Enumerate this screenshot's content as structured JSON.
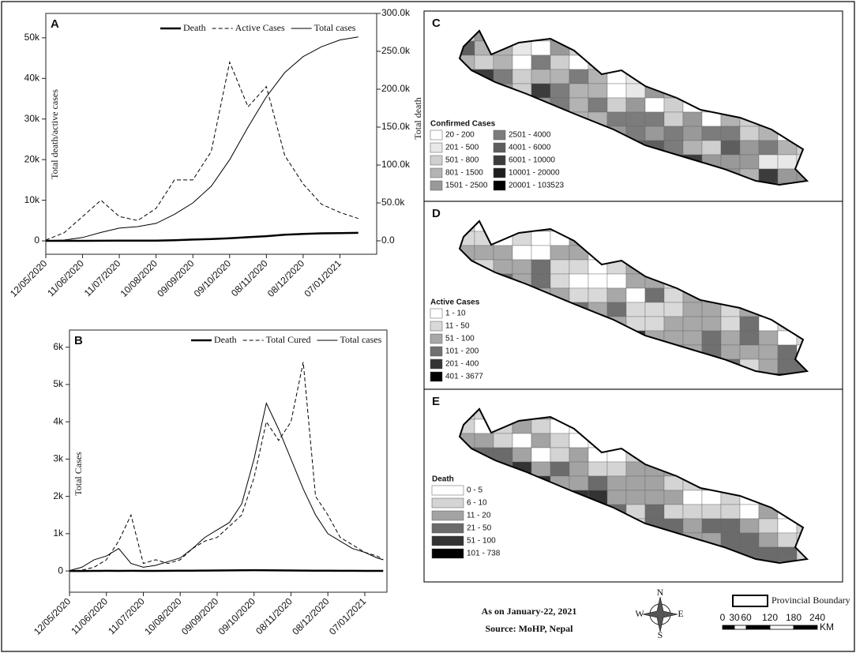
{
  "chart_data": [
    {
      "type": "line",
      "panel": "A",
      "ylabel": "Total death/active cases",
      "y2label": "Total death",
      "x": [
        "12/05/2020",
        "27/05/2020",
        "11/06/2020",
        "26/06/2020",
        "11/07/2020",
        "26/07/2020",
        "10/08/2020",
        "25/08/2020",
        "09/09/2020",
        "24/09/2020",
        "09/10/2020",
        "24/10/2020",
        "08/11/2020",
        "23/11/2020",
        "08/12/2020",
        "23/12/2020",
        "07/01/2021",
        "22/01/2021"
      ],
      "xlim": [
        "12/05/2020",
        "06/02/2021"
      ],
      "xticks": [
        "12/05/2020",
        "11/06/2020",
        "11/07/2020",
        "10/08/2020",
        "09/09/2020",
        "09/10/2020",
        "08/11/2020",
        "08/12/2020",
        "07/01/2021"
      ],
      "ylim": [
        -3300,
        56000
      ],
      "yticks": [
        0,
        {
          "value": 10000,
          "label": "10k"
        },
        {
          "value": 20000,
          "label": "20k"
        },
        {
          "value": 30000,
          "label": "30k"
        },
        {
          "value": 40000,
          "label": "40k"
        },
        {
          "value": 50000,
          "label": "50k"
        }
      ],
      "y2lim": [
        -17700,
        300000
      ],
      "y2ticks": [
        {
          "value": 0,
          "label": "0.0"
        },
        {
          "value": 50000,
          "label": "50.0k"
        },
        {
          "value": 100000,
          "label": "100.0k"
        },
        {
          "value": 150000,
          "label": "150.0k"
        },
        {
          "value": 200000,
          "label": "200.0k"
        },
        {
          "value": 250000,
          "label": "250.0k"
        },
        {
          "value": 300000,
          "label": "300.0k"
        }
      ],
      "series": [
        {
          "name": "Death",
          "color": "#000000",
          "dash": "solid",
          "width": 2.5,
          "values": [
            0,
            5,
            10,
            30,
            40,
            45,
            60,
            150,
            320,
            450,
            650,
            900,
            1150,
            1500,
            1700,
            1850,
            1920,
            1960
          ]
        },
        {
          "name": "Active Cases",
          "color": "#000000",
          "dash": "dashed",
          "width": 1,
          "values": [
            200,
            2000,
            6000,
            10000,
            6000,
            5000,
            8000,
            15000,
            15000,
            22000,
            44000,
            33000,
            38000,
            21000,
            14000,
            9000,
            7000,
            5500
          ]
        },
        {
          "name": "Total cases",
          "color": "#000000",
          "dash": "solid",
          "width": 1,
          "axis": "y2",
          "values": [
            200,
            1000,
            4400,
            11000,
            16800,
            18800,
            23000,
            35000,
            50000,
            72000,
            107000,
            150000,
            190000,
            222000,
            243000,
            256000,
            265000,
            269000
          ]
        }
      ]
    },
    {
      "type": "line",
      "panel": "B",
      "ylabel": "Total Cases",
      "x": [
        "12/05/2020",
        "22/05/2020",
        "01/06/2020",
        "11/06/2020",
        "21/06/2020",
        "01/07/2020",
        "11/07/2020",
        "21/07/2020",
        "31/07/2020",
        "10/08/2020",
        "20/08/2020",
        "30/08/2020",
        "09/09/2020",
        "19/09/2020",
        "29/09/2020",
        "09/10/2020",
        "19/10/2020",
        "29/10/2020",
        "08/11/2020",
        "18/11/2020",
        "28/11/2020",
        "08/12/2020",
        "18/12/2020",
        "28/12/2020",
        "07/01/2021",
        "17/01/2021",
        "22/01/2021"
      ],
      "xlim": [
        "12/05/2020",
        "25/01/2021"
      ],
      "xticks": [
        "12/05/2020",
        "11/06/2020",
        "11/07/2020",
        "10/08/2020",
        "09/09/2020",
        "09/10/2020",
        "08/11/2020",
        "08/12/2020",
        "07/01/2021"
      ],
      "ylim": [
        -570,
        6460
      ],
      "yticks": [
        0,
        {
          "value": 1000,
          "label": "1k"
        },
        {
          "value": 2000,
          "label": "2k"
        },
        {
          "value": 3000,
          "label": "3k"
        },
        {
          "value": 4000,
          "label": "4k"
        },
        {
          "value": 5000,
          "label": "5k"
        },
        {
          "value": 6000,
          "label": "6k"
        }
      ],
      "series": [
        {
          "name": "Death",
          "color": "#000000",
          "dash": "solid",
          "width": 2.5,
          "values": [
            0,
            0,
            1,
            3,
            2,
            3,
            2,
            2,
            3,
            5,
            8,
            10,
            12,
            15,
            18,
            20,
            18,
            15,
            12,
            10,
            8,
            5,
            4,
            3,
            2,
            2,
            1
          ]
        },
        {
          "name": "Total Cured",
          "color": "#000000",
          "dash": "dashed",
          "width": 1,
          "values": [
            0,
            20,
            100,
            300,
            800,
            1500,
            200,
            300,
            200,
            300,
            600,
            800,
            900,
            1200,
            1500,
            2500,
            4000,
            3500,
            4000,
            5600,
            2000,
            1500,
            900,
            700,
            500,
            400,
            300
          ]
        },
        {
          "name": "Total cases",
          "color": "#000000",
          "dash": "solid",
          "width": 1,
          "values": [
            10,
            100,
            300,
            400,
            600,
            200,
            100,
            150,
            250,
            350,
            600,
            900,
            1100,
            1300,
            1800,
            3000,
            4500,
            3800,
            3000,
            2200,
            1500,
            1000,
            800,
            600,
            500,
            350,
            300
          ]
        }
      ]
    }
  ],
  "maps": [
    {
      "panel": "C",
      "legend_title": "Confirmed Cases",
      "legend": [
        {
          "label": "20 - 200",
          "color": "#ffffff"
        },
        {
          "label": "201 - 500",
          "color": "#e8e8e8"
        },
        {
          "label": "501 - 800",
          "color": "#cfcfcf"
        },
        {
          "label": "801 - 1500",
          "color": "#b3b3b3"
        },
        {
          "label": "1501 - 2500",
          "color": "#999999"
        },
        {
          "label": "2501 - 4000",
          "color": "#7c7c7c"
        },
        {
          "label": "4001 - 6000",
          "color": "#5e5e5e"
        },
        {
          "label": "6001 - 10000",
          "color": "#3c3c3c"
        },
        {
          "label": "10001 - 20000",
          "color": "#1e1e1e"
        },
        {
          "label": "20001 - 103523",
          "color": "#000000"
        }
      ]
    },
    {
      "panel": "D",
      "legend_title": "Active Cases",
      "legend": [
        {
          "label": "1 - 10",
          "color": "#ffffff"
        },
        {
          "label": "11 - 50",
          "color": "#d9d9d9"
        },
        {
          "label": "51 - 100",
          "color": "#a8a8a8"
        },
        {
          "label": "101 - 200",
          "color": "#707070"
        },
        {
          "label": "201 - 400",
          "color": "#333333"
        },
        {
          "label": "401 - 3677",
          "color": "#000000"
        }
      ]
    },
    {
      "panel": "E",
      "legend_title": "Death",
      "legend": [
        {
          "label": "0 - 5",
          "color": "#ffffff"
        },
        {
          "label": "6 - 10",
          "color": "#d4d4d4"
        },
        {
          "label": "11 - 20",
          "color": "#a3a3a3"
        },
        {
          "label": "21 - 50",
          "color": "#6b6b6b"
        },
        {
          "label": "51 - 100",
          "color": "#333333"
        },
        {
          "label": "101 - 738",
          "color": "#000000"
        }
      ]
    }
  ],
  "footer": {
    "date": "As on January-22, 2021",
    "source": "Source: MoHP, Nepal",
    "compass": [
      "N",
      "E",
      "S",
      "W"
    ],
    "boundary": "Provincial Boundary",
    "scale_labels": [
      "0",
      "30",
      "60",
      "120",
      "180",
      "240"
    ],
    "scale_unit": "KM"
  }
}
